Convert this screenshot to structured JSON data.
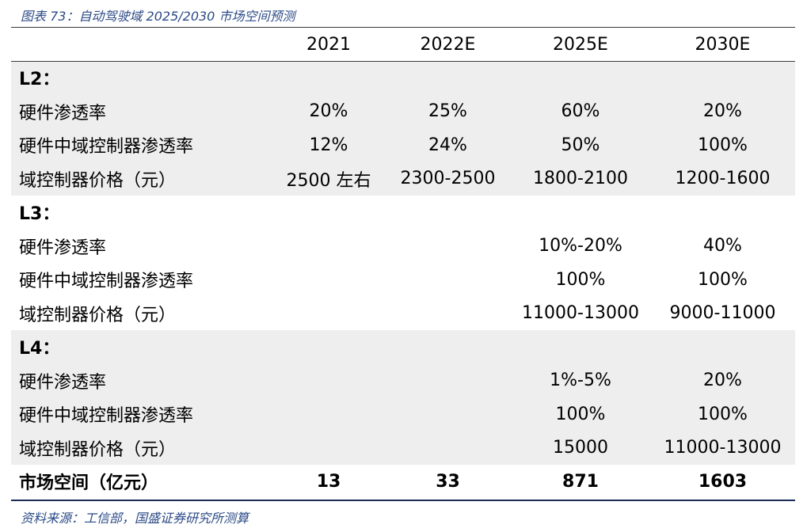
{
  "title": "图表 73：自动驾驶域 2025/2030 市场空间预测",
  "header": {
    "columns": [
      "2021",
      "2022E",
      "2025E",
      "2030E"
    ]
  },
  "sections": [
    {
      "label": "L2：",
      "rows": [
        {
          "label": "硬件渗透率",
          "values": [
            "20%",
            "25%",
            "60%",
            "20%"
          ]
        },
        {
          "label": "硬件中域控制器渗透率",
          "values": [
            "12%",
            "24%",
            "50%",
            "100%"
          ]
        },
        {
          "label": "域控制器价格（元）",
          "values": [
            "2500 左右",
            "2300-2500",
            "1800-2100",
            "1200-1600"
          ]
        }
      ]
    },
    {
      "label": "L3：",
      "rows": [
        {
          "label": "硬件渗透率",
          "values": [
            "",
            "",
            "10%-20%",
            "40%"
          ]
        },
        {
          "label": "硬件中域控制器渗透率",
          "values": [
            "",
            "",
            "100%",
            "100%"
          ]
        },
        {
          "label": "域控制器价格（元）",
          "values": [
            "",
            "",
            "11000-13000",
            "9000-11000"
          ]
        }
      ]
    },
    {
      "label": "L4：",
      "rows": [
        {
          "label": "硬件渗透率",
          "values": [
            "",
            "",
            "1%-5%",
            "20%"
          ]
        },
        {
          "label": "硬件中域控制器渗透率",
          "values": [
            "",
            "",
            "100%",
            "100%"
          ]
        },
        {
          "label": "域控制器价格（元）",
          "values": [
            "",
            "",
            "15000",
            "11000-13000"
          ]
        }
      ]
    }
  ],
  "total": {
    "label": "市场空间（亿元）",
    "values": [
      "13",
      "33",
      "871",
      "1603"
    ]
  },
  "source": "资料来源：工信部，国盛证券研究所测算",
  "colors": {
    "caption": "#2b4a86",
    "shade": "#eeeeee",
    "rule": "#1a2b55"
  }
}
